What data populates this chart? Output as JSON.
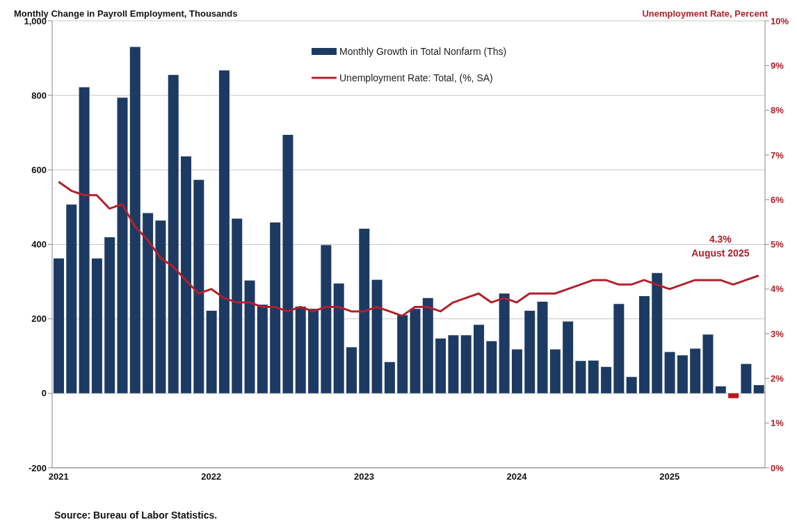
{
  "chart_data": {
    "type": "bar",
    "ylabel": "Monthly Change in Payroll Employment, Thousands",
    "y2label": "Unemployment Rate, Percent",
    "categories": [
      "2021",
      null,
      null,
      null,
      null,
      null,
      null,
      null,
      null,
      null,
      null,
      null,
      "2022",
      null,
      null,
      null,
      null,
      null,
      null,
      null,
      null,
      null,
      null,
      null,
      "2023",
      null,
      null,
      null,
      null,
      null,
      null,
      null,
      null,
      null,
      null,
      null,
      "2024",
      null,
      null,
      null,
      null,
      null,
      null,
      null,
      null,
      null,
      null,
      null,
      "2025",
      null,
      null,
      null,
      null,
      null,
      null,
      null
    ],
    "series": [
      {
        "name": "Monthly Growth in Total Nonfarm (Ths)",
        "color": "#1d3a63",
        "colors": [
          "#1d3a63",
          "#1d3a63",
          "#1d3a63",
          "#1d3a63",
          "#1d3a63",
          "#1d3a63",
          "#1d3a63",
          "#1d3a63",
          "#1d3a63",
          "#1d3a63",
          "#1d3a63",
          "#1d3a63",
          "#1d3a63",
          "#1d3a63",
          "#1d3a63",
          "#1d3a63",
          "#1d3a63",
          "#1d3a63",
          "#1d3a63",
          "#1d3a63",
          "#1d3a63",
          "#1d3a63",
          "#1d3a63",
          "#1d3a63",
          "#1d3a63",
          "#1d3a63",
          "#1d3a63",
          "#1d3a63",
          "#1d3a63",
          "#1d3a63",
          "#1d3a63",
          "#1d3a63",
          "#1d3a63",
          "#1d3a63",
          "#1d3a63",
          "#1d3a63",
          "#1d3a63",
          "#1d3a63",
          "#1d3a63",
          "#1d3a63",
          "#1d3a63",
          "#1d3a63",
          "#1d3a63",
          "#1d3a63",
          "#1d3a63",
          "#1d3a63",
          "#1d3a63",
          "#1d3a63",
          "#1d3a63",
          "#1d3a63",
          "#1d3a63",
          "#1d3a63",
          "#1d3a63",
          "#c0141c",
          "#1d3a63",
          "#1d3a63"
        ],
        "values": [
          362,
          507,
          822,
          362,
          419,
          794,
          930,
          484,
          464,
          855,
          636,
          573,
          222,
          867,
          469,
          303,
          238,
          459,
          694,
          233,
          227,
          398,
          295,
          124,
          442,
          305,
          84,
          210,
          227,
          256,
          147,
          156,
          156,
          184,
          140,
          268,
          118,
          222,
          246,
          118,
          193,
          87,
          88,
          71,
          240,
          44,
          261,
          323,
          111,
          102,
          120,
          158,
          19,
          -13,
          79,
          22
        ]
      },
      {
        "name": "Unemployment Rate: Total, (%, SA)",
        "type": "line",
        "axis": "y2",
        "color": "#b2202a",
        "values": [
          6.4,
          6.2,
          6.1,
          6.1,
          5.8,
          5.9,
          5.4,
          5.1,
          4.7,
          4.5,
          4.2,
          3.9,
          4.0,
          3.8,
          3.7,
          3.7,
          3.6,
          3.6,
          3.5,
          3.6,
          3.5,
          3.6,
          3.6,
          3.5,
          3.5,
          3.6,
          3.5,
          3.4,
          3.6,
          3.6,
          3.5,
          3.7,
          3.8,
          3.9,
          3.7,
          3.8,
          3.7,
          3.9,
          3.9,
          3.9,
          4.0,
          4.1,
          4.2,
          4.2,
          4.1,
          4.1,
          4.2,
          4.1,
          4.0,
          4.1,
          4.2,
          4.2,
          4.2,
          4.1,
          4.2,
          4.3
        ]
      }
    ],
    "ylim": [
      -200,
      1000
    ],
    "yticks": [
      -200,
      0,
      200,
      400,
      600,
      800,
      {
        "value": 1000,
        "label": "1,000"
      }
    ],
    "y2lim": [
      0,
      10
    ],
    "y2ticks": [
      {
        "value": 0,
        "label": "0%"
      },
      {
        "value": 1,
        "label": "1%"
      },
      {
        "value": 2,
        "label": "2%"
      },
      {
        "value": 3,
        "label": "3%"
      },
      {
        "value": 4,
        "label": "4%"
      },
      {
        "value": 5,
        "label": "5%"
      },
      {
        "value": 6,
        "label": "6%"
      },
      {
        "value": 7,
        "label": "7%"
      },
      {
        "value": 8,
        "label": "8%"
      },
      {
        "value": 9,
        "label": "9%"
      },
      {
        "value": 10,
        "label": "10%"
      }
    ],
    "grid": "y",
    "legend": "top",
    "marker": "none",
    "line_style": "solid",
    "annotations": [
      "4.3%",
      "August 2025",
      "Source: Bureau of Labor Statistics."
    ]
  }
}
